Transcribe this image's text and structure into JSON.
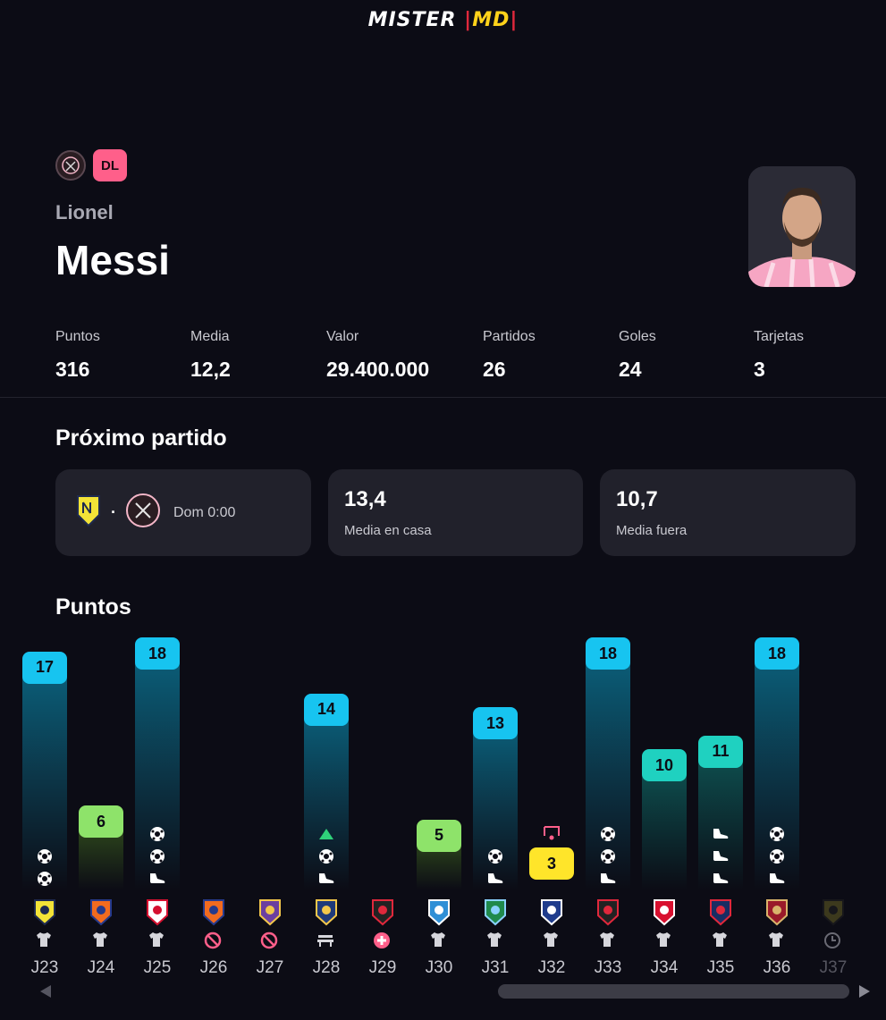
{
  "header": {
    "logo_main": "MISTER ",
    "logo_bar1": "|",
    "logo_md": "MD",
    "logo_bar2": "|"
  },
  "player": {
    "position": "DL",
    "first_name": "Lionel",
    "last_name": "Messi",
    "team_crest_icon": "inter-miami-crest-icon"
  },
  "stats": [
    {
      "label": "Puntos",
      "value": "316"
    },
    {
      "label": "Media",
      "value": "12,2"
    },
    {
      "label": "Valor",
      "value": "29.400.000"
    },
    {
      "label": "Partidos",
      "value": "26"
    },
    {
      "label": "Goles",
      "value": "24"
    },
    {
      "label": "Tarjetas",
      "value": "3"
    }
  ],
  "next_match": {
    "title": "Próximo partido",
    "separator": "·",
    "date": "Dom 0:00",
    "home_avg_value": "13,4",
    "home_avg_label": "Media en casa",
    "away_avg_value": "10,7",
    "away_avg_label": "Media fuera"
  },
  "points_section": {
    "title": "Puntos"
  },
  "colors": {
    "blue": "#17c4f0",
    "teal": "#1fd1c0",
    "green": "#8ee36a",
    "yellow": "#ffe52a",
    "accent_pink": "#ff5f8a"
  },
  "rounds": [
    {
      "round": "J23",
      "points": "17",
      "color": "blue",
      "events": [
        "goal-icon",
        "goal-icon"
      ],
      "status": "shirt-icon"
    },
    {
      "round": "J24",
      "points": "6",
      "color": "green",
      "events": [],
      "status": "shirt-icon"
    },
    {
      "round": "J25",
      "points": "18",
      "color": "blue",
      "events": [
        "goal-icon",
        "goal-icon",
        "assist-boot-icon"
      ],
      "status": "shirt-icon"
    },
    {
      "round": "J26",
      "points": "",
      "color": "",
      "events": [],
      "status": "not-available-icon"
    },
    {
      "round": "J27",
      "points": "",
      "color": "",
      "events": [],
      "status": "not-available-icon"
    },
    {
      "round": "J28",
      "points": "14",
      "color": "blue",
      "events": [
        "triangle-up-icon",
        "goal-icon",
        "assist-boot-icon"
      ],
      "status": "bench-icon"
    },
    {
      "round": "J29",
      "points": "",
      "color": "",
      "events": [],
      "status": "injury-icon"
    },
    {
      "round": "J30",
      "points": "5",
      "color": "green",
      "events": [],
      "status": "shirt-icon"
    },
    {
      "round": "J31",
      "points": "13",
      "color": "blue",
      "events": [
        "goal-icon",
        "assist-boot-icon"
      ],
      "status": "shirt-icon"
    },
    {
      "round": "J32",
      "points": "3",
      "color": "yellow",
      "events": [
        "penalty-missed-icon"
      ],
      "status": "shirt-icon"
    },
    {
      "round": "J33",
      "points": "18",
      "color": "blue",
      "events": [
        "goal-icon",
        "goal-icon",
        "assist-boot-icon"
      ],
      "status": "shirt-icon"
    },
    {
      "round": "J34",
      "points": "10",
      "color": "teal",
      "events": [],
      "status": "shirt-icon"
    },
    {
      "round": "J35",
      "points": "11",
      "color": "teal",
      "events": [
        "assist-boot-icon",
        "assist-boot-icon",
        "assist-boot-icon"
      ],
      "status": "shirt-icon"
    },
    {
      "round": "J36",
      "points": "18",
      "color": "blue",
      "events": [
        "goal-icon",
        "goal-icon",
        "assist-boot-icon"
      ],
      "status": "shirt-icon"
    },
    {
      "round": "J37",
      "points": "",
      "color": "",
      "events": [],
      "status": "clock-icon"
    }
  ]
}
